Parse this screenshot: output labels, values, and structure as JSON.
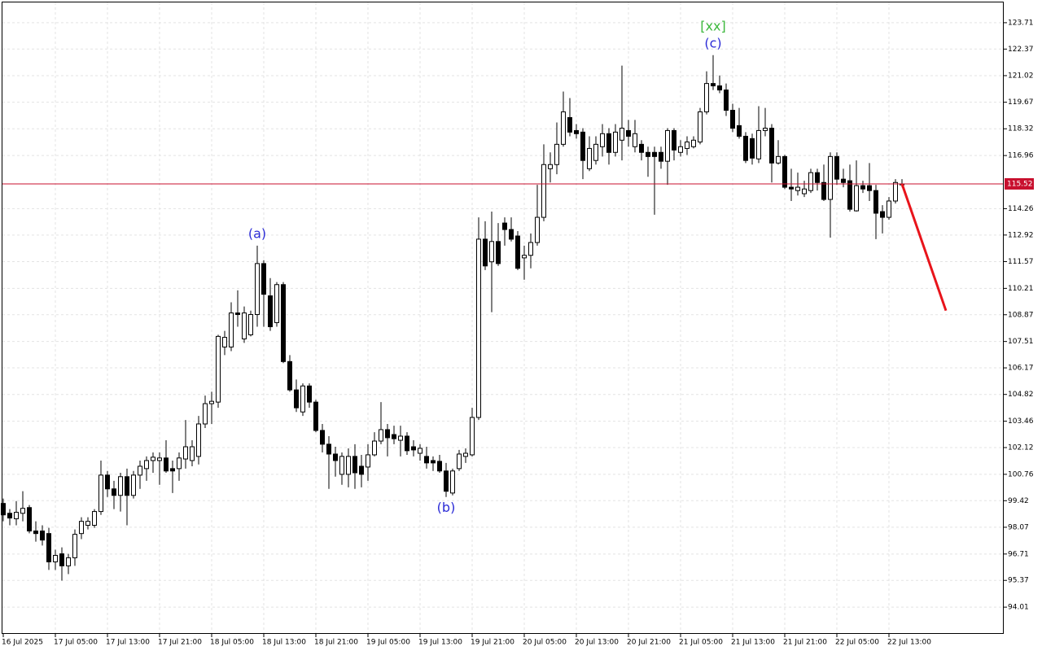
{
  "chart_data": {
    "type": "candlestick",
    "categories": [
      "16 Jul 2025",
      null,
      null,
      null,
      null,
      null,
      null,
      null,
      "17 Jul 05:00",
      null,
      null,
      null,
      null,
      null,
      null,
      null,
      "17 Jul 13:00",
      null,
      null,
      null,
      null,
      null,
      null,
      null,
      "17 Jul 21:00",
      null,
      null,
      null,
      null,
      null,
      null,
      null,
      "18 Jul 05:00",
      null,
      null,
      null,
      null,
      null,
      null,
      null,
      "18 Jul 13:00",
      null,
      null,
      null,
      null,
      null,
      null,
      null,
      "18 Jul 21:00",
      null,
      null,
      null,
      null,
      null,
      null,
      null,
      "19 Jul 05:00",
      null,
      null,
      null,
      null,
      null,
      null,
      null,
      "19 Jul 13:00",
      null,
      null,
      null,
      null,
      null,
      null,
      null,
      "19 Jul 21:00",
      null,
      null,
      null,
      null,
      null,
      null,
      null,
      "20 Jul 05:00",
      null,
      null,
      null,
      null,
      null,
      null,
      null,
      "20 Jul 13:00",
      null,
      null,
      null,
      null,
      null,
      null,
      null,
      "20 Jul 21:00",
      null,
      null,
      null,
      null,
      null,
      null,
      null,
      "21 Jul 05:00",
      null,
      null,
      null,
      null,
      null,
      null,
      null,
      "21 Jul 13:00",
      null,
      null,
      null,
      null,
      null,
      null,
      null,
      "21 Jul 21:00",
      null,
      null,
      null,
      null,
      null,
      null,
      null,
      "22 Jul 05:00",
      null,
      null,
      null,
      null,
      null,
      null,
      null,
      "22 Jul 13:00",
      null,
      null
    ],
    "open": [
      99.28,
      98.78,
      98.5,
      98.78,
      99.07,
      97.88,
      97.88,
      97.75,
      96.31,
      96.72,
      96.11,
      96.52,
      97.75,
      98.17,
      98.17,
      98.87,
      100.72,
      100.02,
      99.69,
      100.64,
      99.69,
      100.72,
      101.05,
      101.46,
      101.46,
      101.59,
      101.05,
      101.05,
      101.54,
      101.46,
      101.67,
      103.32,
      104.35,
      104.43,
      107.23,
      107.23,
      108.96,
      107.64,
      107.85,
      108.88,
      111.47,
      109.83,
      108.47,
      110.4,
      106.49,
      105.05,
      103.93,
      105.25,
      104.43,
      102.99,
      102.29,
      101.79,
      100.76,
      100.76,
      101.67,
      101.17,
      101.13,
      101.75,
      102.45,
      103.03,
      102.78,
      102.49,
      102.7,
      102.16,
      101.83,
      101.67,
      101.46,
      101.42,
      100.93,
      99.81,
      101.05,
      101.67,
      101.75,
      103.65,
      112.71,
      111.56,
      112.59,
      113.53,
      113.2,
      112.87,
      111.76,
      111.89,
      112.54,
      113.82,
      116.29,
      116.5,
      117.53,
      118.89,
      118.23,
      118.15,
      116.29,
      116.71,
      117.41,
      118.07,
      117.12,
      117.74,
      118.23,
      117.41,
      117.53,
      117.12,
      117.12,
      117.12,
      116.67,
      118.23,
      117.12,
      117.32,
      117.41,
      117.65,
      119.18,
      120.62,
      120.5,
      120.29,
      119.26,
      118.48,
      117.94,
      117.82,
      116.79,
      118.23,
      118.35,
      116.58,
      116.91,
      115.35,
      115.18,
      115.02,
      115.18,
      116.09,
      115.59,
      114.73,
      116.91,
      115.76,
      115.68,
      114.15,
      115.43,
      115.43,
      115.18,
      114.11,
      113.82,
      114.65,
      115.47
    ],
    "high": [
      99.53,
      98.99,
      99.4,
      99.9,
      99.2,
      98.37,
      98.17,
      98.04,
      96.93,
      97.05,
      96.72,
      97.96,
      98.58,
      98.58,
      98.99,
      101.46,
      100.93,
      100.43,
      100.84,
      101.05,
      100.93,
      101.46,
      101.67,
      101.87,
      101.87,
      102.49,
      101.46,
      101.87,
      103.52,
      102.49,
      103.73,
      104.76,
      104.96,
      107.85,
      108.05,
      109.5,
      110.11,
      109.29,
      109.08,
      112.38,
      111.64,
      110.73,
      110.53,
      110.53,
      106.82,
      105.58,
      105.38,
      105.38,
      104.55,
      103.32,
      102.7,
      102.16,
      101.87,
      102.08,
      102.29,
      101.75,
      102.29,
      102.9,
      104.43,
      103.32,
      103.23,
      103.23,
      102.9,
      102.49,
      102.29,
      102.16,
      101.67,
      101.75,
      101.34,
      101.05,
      102.0,
      102.08,
      104.14,
      113.82,
      113.62,
      114.11,
      113.53,
      113.82,
      113.82,
      113.12,
      112.38,
      113.0,
      115.47,
      117.53,
      117.12,
      118.64,
      120.21,
      119.88,
      118.56,
      118.35,
      117.94,
      117.94,
      118.56,
      118.35,
      118.56,
      121.53,
      118.77,
      118.77,
      117.74,
      117.41,
      117.41,
      117.41,
      118.35,
      118.35,
      117.74,
      117.94,
      117.94,
      119.38,
      121.24,
      122.06,
      121.03,
      120.62,
      119.59,
      119.38,
      118.15,
      118.07,
      119.47,
      119.38,
      118.56,
      117.74,
      116.99,
      116.29,
      116.09,
      115.68,
      116.29,
      116.29,
      116.5,
      117.12,
      117.12,
      116.29,
      116.5,
      116.71,
      115.68,
      116.58,
      115.47,
      114.44,
      114.85,
      115.76,
      115.76
    ],
    "low": [
      98.37,
      98.17,
      98.17,
      98.37,
      97.76,
      97.34,
      97.14,
      95.9,
      95.9,
      95.36,
      95.69,
      96.11,
      97.47,
      97.96,
      98.04,
      98.7,
      99.61,
      98.99,
      98.87,
      98.17,
      99.53,
      100.02,
      100.43,
      100.84,
      100.23,
      100.84,
      99.81,
      100.43,
      101.05,
      101.17,
      101.26,
      103.11,
      103.32,
      104.14,
      106.82,
      107.02,
      108.26,
      107.44,
      107.77,
      108.26,
      108.26,
      108.05,
      108.26,
      106.41,
      104.96,
      103.93,
      103.73,
      104.14,
      102.9,
      101.87,
      100.02,
      100.64,
      100.23,
      100.1,
      100.02,
      100.1,
      100.43,
      101.67,
      102.29,
      101.67,
      102.29,
      101.67,
      101.75,
      101.67,
      101.46,
      101.05,
      100.93,
      100.84,
      99.61,
      99.69,
      100.93,
      101.34,
      101.67,
      103.52,
      111.14,
      109.0,
      111.35,
      112.38,
      112.59,
      111.14,
      110.65,
      111.23,
      112.38,
      113.62,
      115.59,
      116.01,
      117.41,
      117.94,
      117.82,
      115.76,
      116.17,
      116.5,
      116.91,
      116.5,
      116.91,
      116.71,
      117.41,
      117.12,
      116.71,
      115.88,
      113.95,
      116.29,
      115.47,
      116.71,
      116.91,
      116.99,
      117.32,
      117.53,
      119.05,
      120.29,
      120.13,
      118.97,
      118.15,
      117.82,
      116.58,
      116.5,
      116.58,
      117.94,
      115.59,
      116.5,
      115.26,
      114.65,
      114.93,
      114.85,
      115.06,
      115.18,
      114.65,
      112.79,
      115.47,
      115.35,
      114.11,
      114.11,
      115.06,
      114.65,
      112.71,
      113.0,
      113.7,
      114.52,
      115.35
    ],
    "close": [
      98.7,
      98.54,
      98.83,
      99.03,
      97.88,
      97.75,
      97.42,
      96.31,
      96.64,
      96.11,
      96.52,
      97.71,
      98.37,
      98.37,
      98.87,
      100.72,
      100.02,
      99.69,
      100.64,
      99.69,
      100.72,
      101.17,
      101.46,
      101.63,
      101.59,
      100.93,
      100.93,
      101.59,
      102.16,
      102.16,
      103.32,
      104.35,
      104.47,
      107.77,
      107.72,
      108.96,
      108.88,
      108.96,
      108.88,
      111.47,
      109.91,
      108.26,
      110.4,
      106.49,
      105.05,
      104.14,
      105.25,
      104.43,
      102.99,
      102.29,
      101.79,
      101.46,
      101.67,
      101.67,
      100.84,
      100.76,
      101.75,
      102.45,
      103.03,
      102.62,
      102.57,
      102.7,
      101.96,
      102.0,
      102.08,
      101.34,
      101.34,
      100.93,
      99.9,
      100.93,
      101.79,
      101.83,
      103.65,
      112.71,
      111.35,
      112.59,
      111.47,
      113.2,
      112.71,
      111.23,
      111.89,
      112.54,
      113.82,
      116.5,
      116.5,
      117.53,
      119.18,
      118.15,
      118.07,
      116.71,
      117.32,
      117.53,
      118.07,
      117.12,
      118.15,
      118.35,
      117.94,
      118.07,
      117.12,
      116.91,
      116.91,
      116.67,
      118.23,
      117.24,
      117.41,
      117.65,
      117.74,
      119.18,
      120.62,
      120.5,
      120.29,
      119.26,
      118.35,
      117.94,
      116.71,
      116.83,
      118.23,
      118.35,
      116.58,
      116.91,
      115.35,
      115.26,
      115.35,
      115.26,
      116.09,
      115.59,
      114.73,
      116.91,
      115.76,
      115.59,
      114.23,
      115.43,
      115.26,
      115.18,
      114.03,
      113.82,
      114.65,
      115.59,
      115.52
    ],
    "up_color": "#ffffff",
    "down_color": "#000000",
    "wick_color": "#000000",
    "ylim": [
      92.65,
      124.74
    ],
    "yticks": [
      123.71,
      122.37,
      121.02,
      119.67,
      118.32,
      116.96,
      114.26,
      112.92,
      111.57,
      110.21,
      108.87,
      107.51,
      106.17,
      104.82,
      103.46,
      102.12,
      100.76,
      99.42,
      98.07,
      96.71,
      95.37,
      94.01
    ],
    "grid": true,
    "last_price": {
      "value": 115.52,
      "color": "#c8102e"
    },
    "forecast": {
      "values": [
        115.52,
        109.08
      ],
      "color": "#e8141b"
    },
    "annotations": [
      {
        "text": "(a)",
        "color": "#2b2bd6"
      },
      {
        "text": "(b)",
        "color": "#2b2bd6"
      },
      {
        "text": "(c)",
        "color": "#2b2bd6"
      },
      {
        "text": "[xx]",
        "color": "#3cb83c"
      }
    ]
  }
}
